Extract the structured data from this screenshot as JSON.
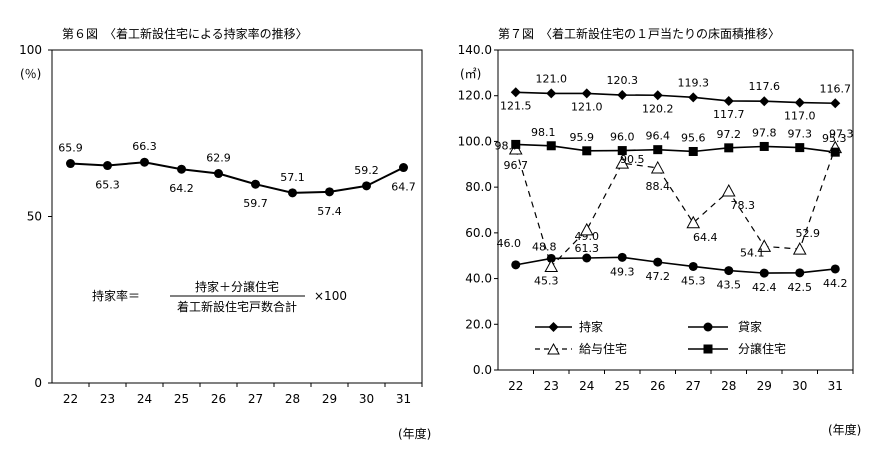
{
  "chart_data": [
    {
      "type": "line",
      "title": "第６図　〈着工新設住宅による持家率の推移〉",
      "ylabel": "(％)",
      "xlabel": "(年度)",
      "ylim": [
        0,
        100
      ],
      "yticks": [
        0,
        50,
        100
      ],
      "categories": [
        "22",
        "23",
        "24",
        "25",
        "26",
        "27",
        "28",
        "29",
        "30",
        "31"
      ],
      "series": [
        {
          "name": "持家率",
          "values": [
            65.9,
            65.3,
            66.3,
            64.2,
            62.9,
            59.7,
            57.1,
            57.4,
            59.2,
            64.7
          ]
        }
      ],
      "formula": {
        "lhs": "持家率＝",
        "numerator": "持家＋分譲住宅",
        "denominator": "着工新設住宅戸数合計",
        "multiplier": "×100"
      }
    },
    {
      "type": "line",
      "title": "第７図　〈着工新設住宅の１戸当たりの床面積推移〉",
      "ylabel": "(㎡)",
      "xlabel": "(年度)",
      "ylim": [
        0,
        140
      ],
      "yticks": [
        "0.0",
        "20.0",
        "40.0",
        "60.0",
        "80.0",
        "100.0",
        "120.0",
        "140.0"
      ],
      "categories": [
        "22",
        "23",
        "24",
        "25",
        "26",
        "27",
        "28",
        "29",
        "30",
        "31"
      ],
      "series": [
        {
          "name": "持家",
          "values": [
            121.5,
            121.0,
            121.0,
            120.3,
            120.2,
            119.3,
            117.7,
            117.6,
            117.0,
            116.7
          ],
          "labels": [
            "121.5",
            "121.0",
            "121.0",
            "120.3",
            "120.2",
            "119.3",
            "117.7",
            "117.6",
            "117.0",
            "116.7"
          ]
        },
        {
          "name": "貸家",
          "values": [
            46.0,
            48.8,
            49.0,
            49.3,
            47.2,
            45.3,
            43.5,
            42.4,
            42.5,
            44.2
          ],
          "labels": [
            "46.0",
            "48.8",
            "49.0",
            "49.3",
            "47.2",
            "45.3",
            "43.5",
            "42.4",
            "42.5",
            "44.2"
          ]
        },
        {
          "name": "給与住宅",
          "values": [
            96.7,
            45.3,
            61.3,
            90.5,
            88.4,
            64.4,
            78.3,
            54.1,
            52.9,
            97.3
          ],
          "labels": [
            "96.7",
            "45.3",
            "61.3",
            "90.5",
            "88.4",
            "64.4",
            "78.3",
            "54.1",
            "52.9",
            "97.3"
          ]
        },
        {
          "name": "分譲住宅",
          "values": [
            98.7,
            98.1,
            95.9,
            96.0,
            96.4,
            95.6,
            97.2,
            97.8,
            97.3,
            95.3
          ],
          "labels": [
            "98.7",
            "98.1",
            "95.9",
            "96.0",
            "96.4",
            "95.6",
            "97.2",
            "97.8",
            "97.3",
            "95.3"
          ]
        }
      ]
    }
  ]
}
